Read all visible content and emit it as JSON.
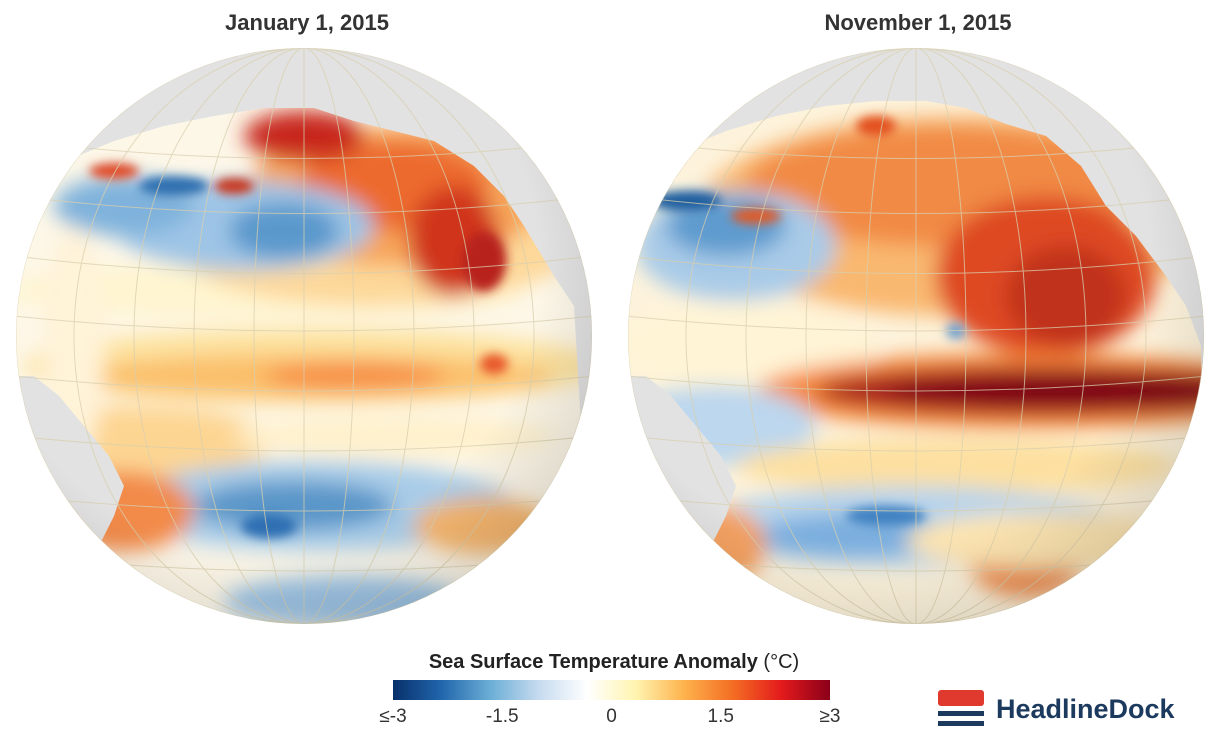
{
  "maps": [
    {
      "title": "January 1, 2015"
    },
    {
      "title": "November 1, 2015"
    }
  ],
  "legend": {
    "title": "Sea Surface Temperature Anomaly",
    "unit": "(°C)",
    "ticks": [
      "≤-3",
      "-1.5",
      "0",
      "1.5",
      "≥3"
    ],
    "tick_values": [
      -3,
      -1.5,
      0,
      1.5,
      3
    ],
    "colors": [
      "#08306b",
      "#2166ac",
      "#6baed6",
      "#c6dbef",
      "#ffffff",
      "#fff4b0",
      "#fdb24c",
      "#f46d23",
      "#e31a1c",
      "#8b0019"
    ]
  },
  "brand": {
    "name": "HeadlineDock",
    "colors": {
      "red": "#e03a2f",
      "navy": "#1c3a5e"
    }
  },
  "colors": {
    "land": "#e2e2e2",
    "ocean_neutral": "#fdf7e8",
    "grid": "#d9cfae"
  }
}
